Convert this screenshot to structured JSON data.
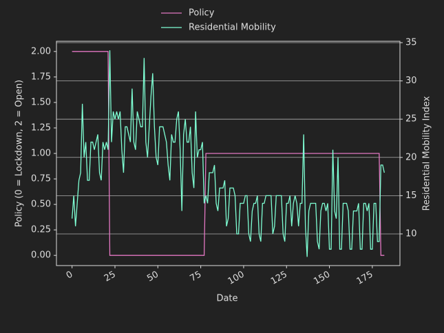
{
  "chart_data": {
    "type": "line",
    "xlabel": "Date",
    "ylabel": "Policy (0 = Lockdown, 2 = Open)",
    "y2label": "Residential Mobility Index",
    "x": [
      0,
      1,
      2,
      3,
      4,
      5,
      6,
      7,
      8,
      9,
      10,
      11,
      12,
      13,
      14,
      15,
      16,
      17,
      18,
      19,
      20,
      21,
      22,
      23,
      24,
      25,
      26,
      27,
      28,
      29,
      30,
      31,
      32,
      33,
      34,
      35,
      36,
      37,
      38,
      39,
      40,
      41,
      42,
      43,
      44,
      45,
      46,
      47,
      48,
      49,
      50,
      51,
      52,
      53,
      54,
      55,
      56,
      57,
      58,
      59,
      60,
      61,
      62,
      63,
      64,
      65,
      66,
      67,
      68,
      69,
      70,
      71,
      72,
      73,
      74,
      75,
      76,
      77,
      78,
      79,
      80,
      81,
      82,
      83,
      84,
      85,
      86,
      87,
      88,
      89,
      90,
      91,
      92,
      93,
      94,
      95,
      96,
      97,
      98,
      99,
      100,
      101,
      102,
      103,
      104,
      105,
      106,
      107,
      108,
      109,
      110,
      111,
      112,
      113,
      114,
      115,
      116,
      117,
      118,
      119,
      120,
      121,
      122,
      123,
      124,
      125,
      126,
      127,
      128,
      129,
      130,
      131,
      132,
      133,
      134,
      135,
      136,
      137,
      138,
      139,
      140,
      141,
      142,
      143,
      144,
      145,
      146,
      147,
      148,
      149,
      150,
      151,
      152,
      153,
      154,
      155,
      156,
      157,
      158,
      159,
      160,
      161,
      162,
      163,
      164,
      165,
      166,
      167,
      168,
      169,
      170,
      171,
      172,
      173,
      174,
      175,
      176,
      177,
      178,
      179,
      180,
      181,
      182
    ],
    "series": [
      {
        "name": "Policy",
        "color": "#e377c2",
        "values": [
          2,
          2,
          2,
          2,
          2,
          2,
          2,
          2,
          2,
          2,
          2,
          2,
          2,
          2,
          2,
          2,
          2,
          2,
          2,
          2,
          2,
          2,
          0,
          0,
          0,
          0,
          0,
          0,
          0,
          0,
          0,
          0,
          0,
          0,
          0,
          0,
          0,
          0,
          0,
          0,
          0,
          0,
          0,
          0,
          0,
          0,
          0,
          0,
          0,
          0,
          0,
          0,
          0,
          0,
          0,
          0,
          0,
          0,
          0,
          0,
          0,
          0,
          0,
          0,
          0,
          0,
          0,
          0,
          0,
          0,
          0,
          0,
          0,
          0,
          0,
          0,
          0,
          0,
          1,
          1,
          1,
          1,
          1,
          1,
          1,
          1,
          1,
          1,
          1,
          1,
          1,
          1,
          1,
          1,
          1,
          1,
          1,
          1,
          1,
          1,
          1,
          1,
          1,
          1,
          1,
          1,
          1,
          1,
          1,
          1,
          1,
          1,
          1,
          1,
          1,
          1,
          1,
          1,
          1,
          1,
          1,
          1,
          1,
          1,
          1,
          1,
          1,
          1,
          1,
          1,
          1,
          1,
          1,
          1,
          1,
          1,
          1,
          1,
          1,
          1,
          1,
          1,
          1,
          1,
          1,
          1,
          1,
          1,
          1,
          1,
          1,
          1,
          1,
          1,
          1,
          1,
          1,
          1,
          1,
          1,
          1,
          1,
          1,
          1,
          1,
          1,
          1,
          1,
          1,
          1,
          1,
          1,
          1,
          1,
          1,
          1,
          1,
          1,
          1,
          1,
          0,
          0,
          0
        ]
      },
      {
        "name": "Residential Mobility",
        "color": "#7fffd4",
        "axis": "y2",
        "values": [
          12,
          15,
          11,
          14,
          17,
          18,
          27,
          20,
          22,
          17,
          17,
          22,
          22,
          21,
          22,
          23,
          18,
          17,
          22,
          21,
          22,
          21,
          34,
          22,
          26,
          25,
          26,
          25,
          26,
          21,
          18,
          24,
          24,
          23,
          22,
          29,
          22,
          21,
          26,
          25,
          24,
          24,
          33,
          22,
          20,
          24,
          28,
          31,
          24,
          20,
          19,
          24,
          24,
          24,
          23,
          22,
          19,
          17,
          23,
          22,
          22,
          25,
          26,
          21,
          13,
          23,
          25,
          22,
          22,
          24,
          18,
          16,
          26,
          20,
          21,
          21,
          22,
          14,
          15,
          14,
          18,
          18,
          18,
          19,
          14,
          13,
          16,
          16,
          16,
          17,
          11,
          12,
          16,
          16,
          16,
          15,
          10,
          10,
          14,
          14,
          14,
          15,
          15,
          10,
          9,
          13,
          14,
          14,
          15,
          10,
          9,
          14,
          14,
          15,
          15,
          15,
          15,
          10,
          11,
          15,
          15,
          15,
          15,
          10,
          9,
          14,
          14,
          15,
          11,
          14,
          15,
          14,
          11,
          14,
          14,
          23,
          11,
          7,
          13,
          14,
          14,
          14,
          14,
          9,
          8,
          13,
          14,
          14,
          13,
          14,
          8,
          8,
          21,
          13,
          12,
          20,
          8,
          8,
          14,
          14,
          14,
          13,
          8,
          8,
          13,
          13,
          13,
          14,
          8,
          8,
          14,
          14,
          13,
          14,
          8,
          8,
          14,
          14,
          9,
          9,
          19,
          19,
          18
        ]
      }
    ],
    "xlim": [
      -9.1,
      191.1
    ],
    "xticks": [
      0,
      25,
      50,
      75,
      100,
      125,
      150,
      175
    ],
    "ylim": [
      -0.1,
      2.1
    ],
    "yticks": [
      {
        "value": 0,
        "label": "0.00"
      },
      {
        "value": 0.25,
        "label": "0.25"
      },
      {
        "value": 0.5,
        "label": "0.50"
      },
      {
        "value": 0.75,
        "label": "0.75"
      },
      {
        "value": 1,
        "label": "1.00"
      },
      {
        "value": 1.25,
        "label": "1.25"
      },
      {
        "value": 1.5,
        "label": "1.50"
      },
      {
        "value": 1.75,
        "label": "1.75"
      },
      {
        "value": 2,
        "label": "2.00"
      }
    ],
    "y2lim": [
      5.86,
      35.18
    ],
    "y2ticks": [
      10,
      15,
      20,
      25,
      30,
      35
    ],
    "grid": "y2",
    "legend": "top"
  }
}
